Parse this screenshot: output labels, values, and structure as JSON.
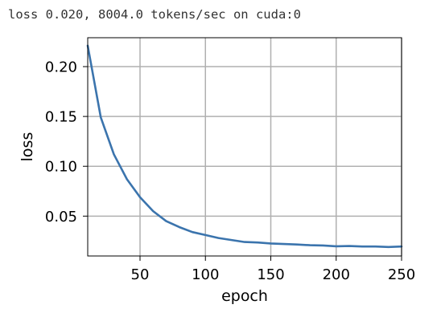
{
  "log": {
    "text": "loss 0.020, 8004.0 tokens/sec on cuda:0"
  },
  "colors": {
    "series": "#3b74ad",
    "grid": "#b0b0b0",
    "axis": "#000000"
  },
  "chart_data": {
    "type": "line",
    "title": "",
    "xlabel": "epoch",
    "ylabel": "loss",
    "xlim": [
      10,
      250
    ],
    "ylim": [
      0.01,
      0.229
    ],
    "xticks": [
      50,
      100,
      150,
      200,
      250
    ],
    "yticks": [
      0.05,
      0.1,
      0.15,
      0.2
    ],
    "ytick_labels": [
      "0.05",
      "0.10",
      "0.15",
      "0.20"
    ],
    "grid": true,
    "legend": "none",
    "series": [
      {
        "x": [
          10,
          20,
          30,
          40,
          50,
          60,
          70,
          80,
          90,
          100,
          110,
          120,
          130,
          140,
          150,
          160,
          170,
          180,
          190,
          200,
          210,
          220,
          230,
          240,
          250
        ],
        "y": [
          0.221,
          0.149,
          0.112,
          0.087,
          0.069,
          0.055,
          0.045,
          0.039,
          0.034,
          0.031,
          0.028,
          0.026,
          0.024,
          0.0235,
          0.0225,
          0.022,
          0.0215,
          0.0208,
          0.0205,
          0.0197,
          0.02,
          0.0195,
          0.0195,
          0.019,
          0.0195
        ]
      }
    ]
  }
}
